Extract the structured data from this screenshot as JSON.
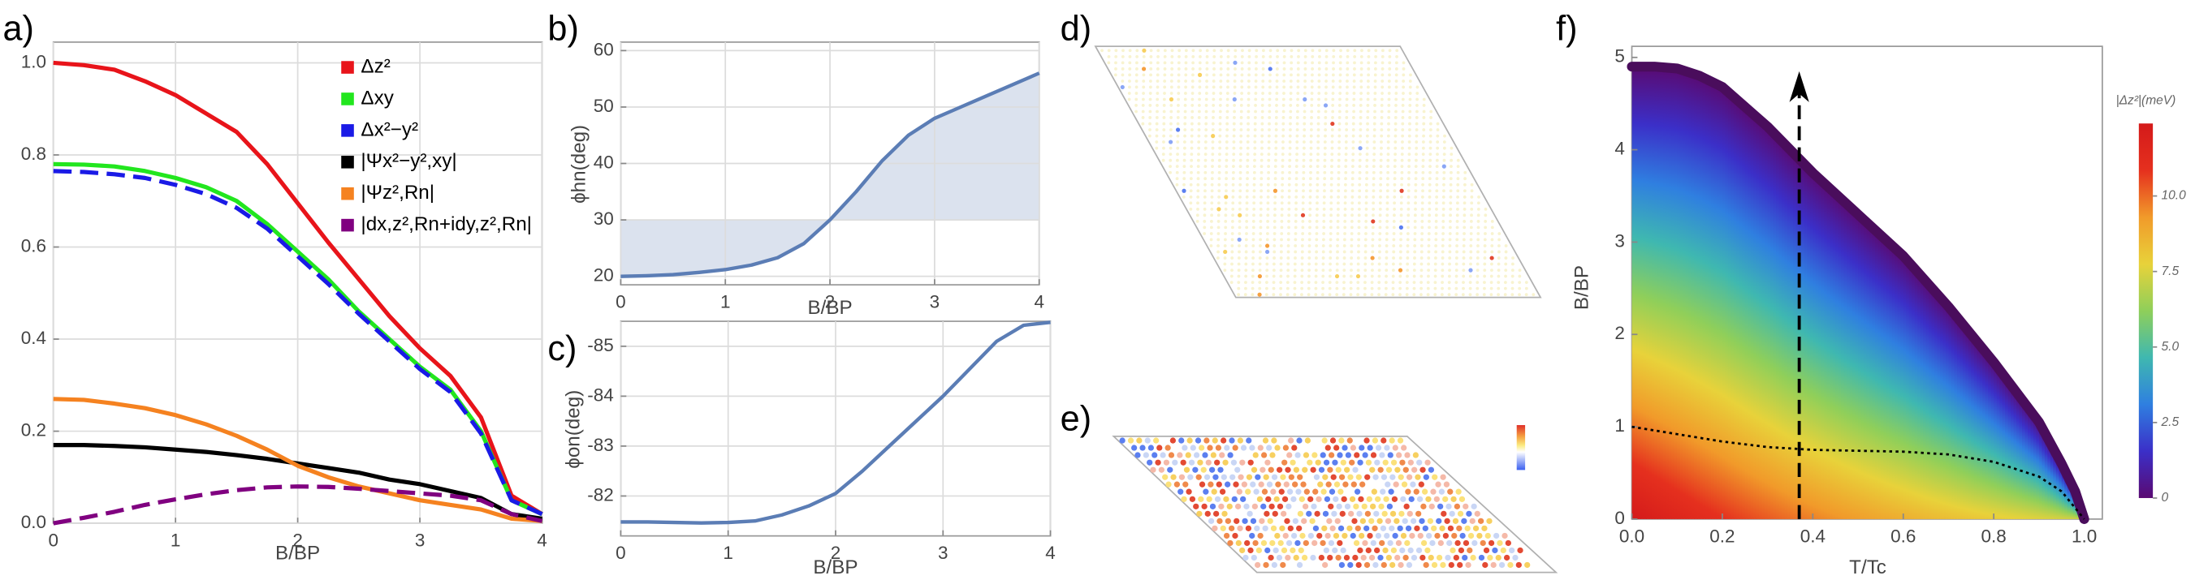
{
  "chart_data": [
    {
      "type": "line",
      "label": "a)",
      "x": [
        0,
        0.25,
        0.5,
        0.75,
        1,
        1.25,
        1.5,
        1.75,
        2,
        2.25,
        2.5,
        2.75,
        3,
        3.25,
        3.5,
        3.75,
        4
      ],
      "xlim": [
        0,
        4
      ],
      "ylim": [
        0,
        1.045
      ],
      "xticks": [
        0,
        1,
        2,
        3,
        4
      ],
      "yticks": [
        {
          "value": 0,
          "label": "0.0"
        },
        {
          "value": 0.2,
          "label": "0.2"
        },
        {
          "value": 0.4,
          "label": "0.4"
        },
        {
          "value": 0.6,
          "label": "0.6"
        },
        {
          "value": 0.8,
          "label": "0.8"
        },
        {
          "value": 1,
          "label": "1.0"
        }
      ],
      "x_label": "B/BP",
      "grid": true,
      "legend": "top-right",
      "series": [
        {
          "name": "Δz²",
          "color": "#e8141a",
          "style": "solid",
          "values": [
            1.0,
            0.995,
            0.985,
            0.96,
            0.93,
            0.89,
            0.85,
            0.78,
            0.695,
            0.61,
            0.53,
            0.45,
            0.38,
            0.32,
            0.23,
            0.06,
            0.02
          ]
        },
        {
          "name": "Δxy",
          "color": "#22e61e",
          "style": "solid",
          "values": [
            0.78,
            0.779,
            0.775,
            0.765,
            0.75,
            0.73,
            0.7,
            0.65,
            0.59,
            0.53,
            0.46,
            0.4,
            0.34,
            0.29,
            0.2,
            0.05,
            0.02
          ]
        },
        {
          "name": "Δx²−y²",
          "color": "#1a1ae6",
          "style": "dashed",
          "values": [
            0.765,
            0.763,
            0.758,
            0.75,
            0.735,
            0.715,
            0.685,
            0.64,
            0.58,
            0.52,
            0.455,
            0.395,
            0.335,
            0.285,
            0.195,
            0.05,
            0.02
          ]
        },
        {
          "name": "|Ψx²−y²,xy|",
          "color": "#000000",
          "style": "solid",
          "values": [
            0.17,
            0.17,
            0.168,
            0.165,
            0.16,
            0.155,
            0.148,
            0.14,
            0.13,
            0.12,
            0.11,
            0.095,
            0.085,
            0.07,
            0.055,
            0.02,
            0.01
          ]
        },
        {
          "name": "|Ψz²,Rn|",
          "color": "#f58220",
          "style": "solid",
          "values": [
            0.27,
            0.268,
            0.26,
            0.25,
            0.235,
            0.215,
            0.19,
            0.16,
            0.125,
            0.1,
            0.08,
            0.065,
            0.05,
            0.04,
            0.03,
            0.01,
            0.005
          ]
        },
        {
          "name": "|dx,z²,Rn+idy,z²,Rn|",
          "color": "#800080",
          "style": "dashed",
          "values": [
            0.0,
            0.012,
            0.025,
            0.04,
            0.052,
            0.063,
            0.072,
            0.078,
            0.08,
            0.079,
            0.075,
            0.07,
            0.065,
            0.06,
            0.05,
            0.02,
            0.005
          ]
        }
      ]
    },
    {
      "type": "line",
      "label": "b)",
      "x": [
        0,
        0.25,
        0.5,
        0.75,
        1,
        1.25,
        1.5,
        1.75,
        2,
        2.25,
        2.5,
        2.75,
        3,
        3.25,
        3.5,
        3.75,
        4
      ],
      "values": [
        20,
        20.1,
        20.3,
        20.7,
        21.2,
        22,
        23.3,
        25.8,
        30,
        35,
        40.5,
        45,
        48,
        50,
        52,
        54,
        56
      ],
      "color": "#5b7db5",
      "fill_to": 30,
      "fill_color": "#dbe2ee",
      "xlim": [
        0,
        4
      ],
      "ylim": [
        18.5,
        61.5
      ],
      "xticks": [
        0,
        1,
        2,
        3,
        4
      ],
      "yticks": [
        20,
        30,
        40,
        50,
        60
      ],
      "x_label": "B/BP",
      "y_label": "ϕhn(deg)",
      "grid": true
    },
    {
      "type": "line",
      "label": "c)",
      "x": [
        0,
        0.25,
        0.5,
        0.75,
        1,
        1.25,
        1.5,
        1.75,
        2,
        2.25,
        2.5,
        2.75,
        3,
        3.25,
        3.5,
        3.75,
        4
      ],
      "values": [
        -81.48,
        -81.48,
        -81.47,
        -81.46,
        -81.47,
        -81.5,
        -81.62,
        -81.8,
        -82.05,
        -82.5,
        -83.0,
        -83.5,
        -84.0,
        -84.55,
        -85.1,
        -85.42,
        -85.48
      ],
      "color": "#5b7db5",
      "xlim": [
        0,
        4
      ],
      "ylim": [
        -81.2,
        -85.5
      ],
      "xticks": [
        0,
        1,
        2,
        3,
        4
      ],
      "yticks": [
        -82,
        -83,
        -84,
        -85
      ],
      "x_label": "B/BP",
      "y_label": "ϕon(deg)",
      "grid": true
    },
    {
      "type": "lattice",
      "label": "d)"
    },
    {
      "type": "lattice",
      "label": "e)"
    },
    {
      "type": "heatmap",
      "label": "f)",
      "xlim": [
        0,
        1.04
      ],
      "ylim": [
        0,
        5.12
      ],
      "xticks": [
        {
          "value": 0,
          "label": "0.0"
        },
        {
          "value": 0.2,
          "label": "0.2"
        },
        {
          "value": 0.4,
          "label": "0.4"
        },
        {
          "value": 0.6,
          "label": "0.6"
        },
        {
          "value": 0.8,
          "label": "0.8"
        },
        {
          "value": 1,
          "label": "1.0"
        }
      ],
      "yticks": [
        0,
        1,
        2,
        3,
        4,
        5
      ],
      "x_label": "T/Tc",
      "y_label": "B/BP",
      "boundary": {
        "color": "#4a0d5c",
        "x": [
          0,
          0.05,
          0.1,
          0.15,
          0.2,
          0.3,
          0.4,
          0.5,
          0.6,
          0.7,
          0.8,
          0.9,
          0.95,
          0.98,
          1.0
        ],
        "values": [
          4.9,
          4.9,
          4.88,
          4.8,
          4.68,
          4.25,
          3.75,
          3.3,
          2.85,
          2.3,
          1.7,
          1.05,
          0.6,
          0.3,
          0
        ]
      },
      "crossover": {
        "color": "#000000",
        "x": [
          0,
          0.1,
          0.2,
          0.3,
          0.4,
          0.5,
          0.6,
          0.7,
          0.8,
          0.9,
          0.95,
          1.0
        ],
        "values": [
          1.0,
          0.92,
          0.84,
          0.78,
          0.75,
          0.74,
          0.73,
          0.7,
          0.62,
          0.46,
          0.3,
          0
        ]
      },
      "arrow": {
        "color": "#000000",
        "x": 0.37,
        "y": [
          0,
          4.85
        ]
      },
      "colormap": [
        "#5a0a72",
        "#3b2fc8",
        "#2f7fe0",
        "#3fb8b0",
        "#8fcf5a",
        "#e8d23a",
        "#f19a2a",
        "#e5301e",
        "#d41a1a"
      ],
      "zlim": [
        0,
        12.4
      ],
      "colorbar_title": "|Δz²|(meV)",
      "cticks": [
        0,
        2.5,
        {
          "value": 5,
          "label": "5.0"
        },
        7.5,
        {
          "value": 10,
          "label": "10.0"
        }
      ]
    }
  ]
}
